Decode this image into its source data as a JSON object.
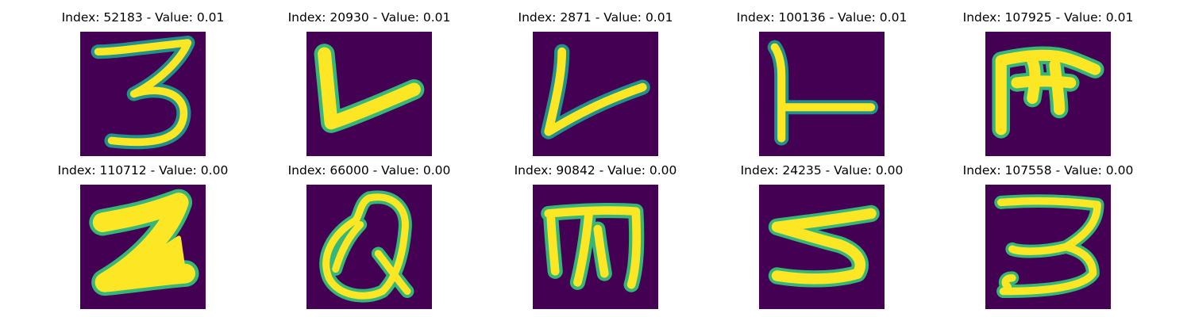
{
  "colors": {
    "background": "#440154",
    "stroke_core": "#fde725",
    "stroke_halo": "#35b779",
    "stroke_edge": "#21918c"
  },
  "panels": [
    {
      "title": "Index: 52183 - Value: 0.01",
      "glyph": "3"
    },
    {
      "title": "Index: 20930 - Value: 0.01",
      "glyph": "check"
    },
    {
      "title": "Index: 2871 - Value: 0.01",
      "glyph": "check-thin"
    },
    {
      "title": "Index: 100136 - Value: 0.01",
      "glyph": "L"
    },
    {
      "title": "Index: 107925 - Value: 0.01",
      "glyph": "m-rotated"
    },
    {
      "title": "Index: 110712 - Value: 0.00",
      "glyph": "Z"
    },
    {
      "title": "Index: 66000 - Value: 0.00",
      "glyph": "Q"
    },
    {
      "title": "Index: 90842 - Value: 0.00",
      "glyph": "m"
    },
    {
      "title": "Index: 24235 - Value: 0.00",
      "glyph": "5"
    },
    {
      "title": "Index: 107558 - Value: 0.00",
      "glyph": "3"
    }
  ]
}
